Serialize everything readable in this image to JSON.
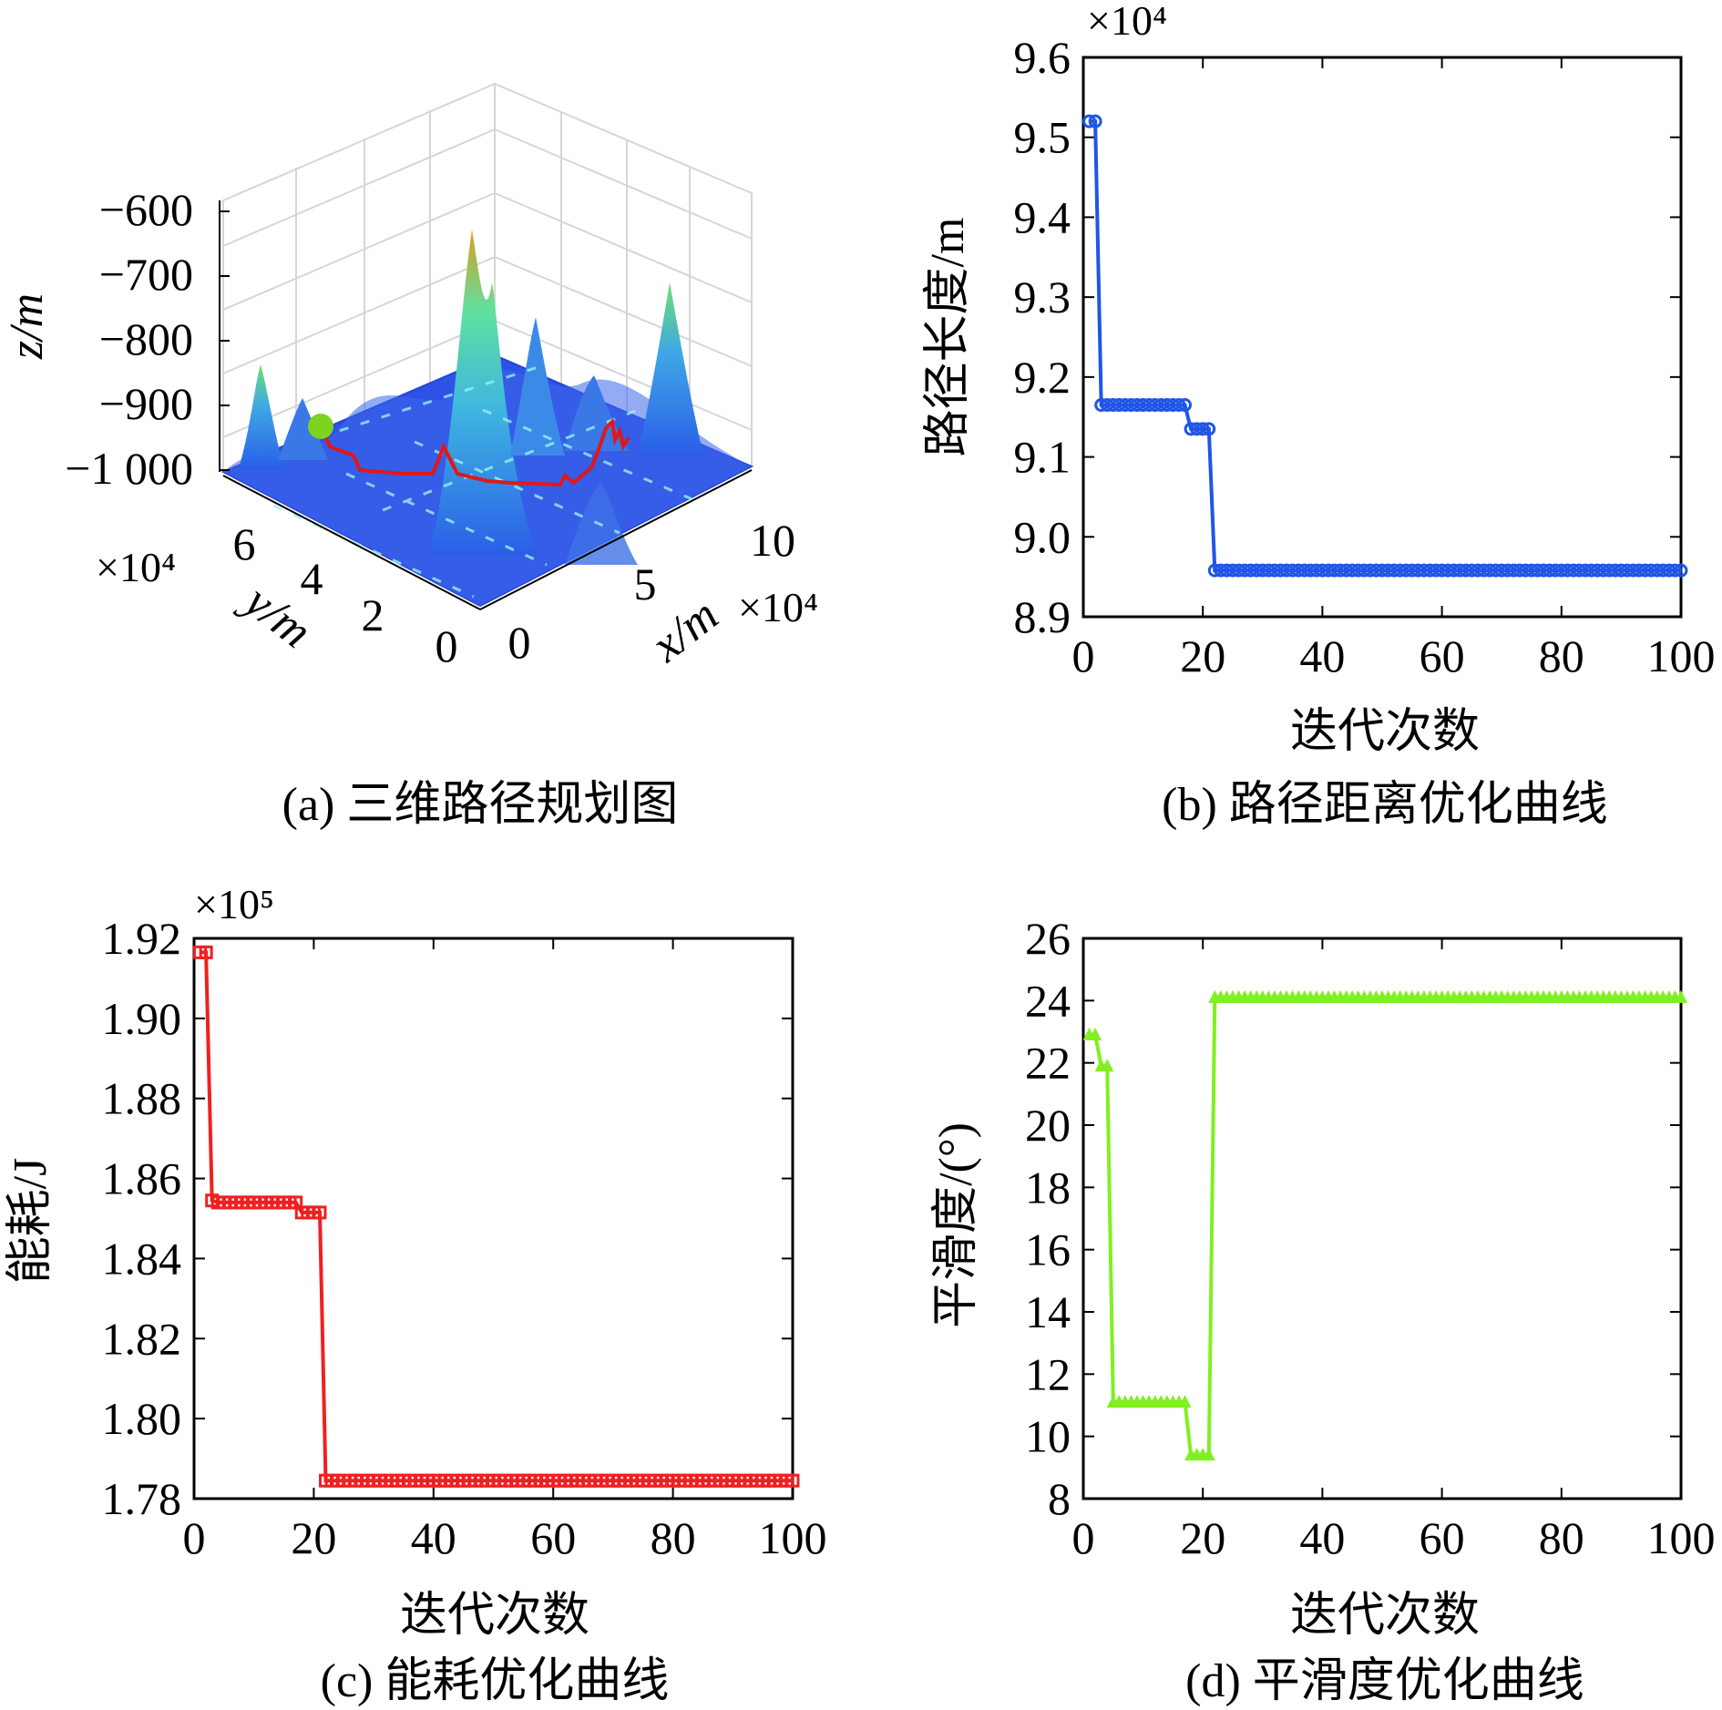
{
  "colors": {
    "b": "#2055e6",
    "c": "#f02020",
    "d": "#80f020",
    "path3d": "#e01818",
    "start3d": "#7ed321"
  },
  "panel_a": {
    "caption": "(a) 三维路径规划图",
    "zlabel": "z/m",
    "ylabel": "y/m",
    "xlabel": "x/m",
    "x_multiplier": "×10⁴",
    "y_multiplier": "×10⁴",
    "z_ticks": [
      "−600",
      "−700",
      "−800",
      "−900",
      "−1 000"
    ],
    "y_ticks": [
      "6",
      "4",
      "2",
      "0"
    ],
    "x_ticks": [
      "0",
      "5",
      "10"
    ]
  },
  "chart_data": [
    {
      "id": "b",
      "type": "line",
      "caption": "(b) 路径距离优化曲线",
      "xlabel": "迭代次数",
      "ylabel": "路径长度/m",
      "multiplier": "×10⁴",
      "xlim": [
        0,
        100
      ],
      "ylim": [
        8.9,
        9.6
      ],
      "xticks": [
        0,
        20,
        40,
        60,
        80,
        100
      ],
      "yticks": [
        8.9,
        9.0,
        9.1,
        9.2,
        9.3,
        9.4,
        9.5,
        9.6
      ],
      "ytick_labels": [
        "8.9",
        "9.0",
        "9.1",
        "9.2",
        "9.3",
        "9.4",
        "9.5",
        "9.6"
      ],
      "marker": "circle",
      "segments": [
        {
          "from": 1,
          "to": 2,
          "value": 9.52
        },
        {
          "from": 3,
          "to": 17,
          "value": 9.165
        },
        {
          "from": 18,
          "to": 21,
          "value": 9.135
        },
        {
          "from": 22,
          "to": 100,
          "value": 8.958
        }
      ]
    },
    {
      "id": "c",
      "type": "line",
      "caption": "(c) 能耗优化曲线",
      "xlabel": "迭代次数",
      "ylabel": "能耗/J",
      "multiplier": "×10⁵",
      "xlim": [
        0,
        100
      ],
      "ylim": [
        1.78,
        1.92
      ],
      "xticks": [
        0,
        20,
        40,
        60,
        80,
        100
      ],
      "yticks": [
        1.78,
        1.8,
        1.82,
        1.84,
        1.86,
        1.88,
        1.9,
        1.92
      ],
      "ytick_labels": [
        "1.78",
        "1.80",
        "1.82",
        "1.84",
        "1.86",
        "1.88",
        "1.90",
        "1.92"
      ],
      "marker": "square",
      "segments": [
        {
          "from": 1,
          "to": 2,
          "value": 1.9165
        },
        {
          "from": 3,
          "to": 3,
          "value": 1.8545
        },
        {
          "from": 4,
          "to": 17,
          "value": 1.854
        },
        {
          "from": 18,
          "to": 21,
          "value": 1.8515
        },
        {
          "from": 22,
          "to": 100,
          "value": 1.7845
        }
      ]
    },
    {
      "id": "d",
      "type": "line",
      "caption": "(d) 平滑度优化曲线",
      "xlabel": "迭代次数",
      "ylabel": "平滑度/(°)",
      "multiplier": "",
      "xlim": [
        0,
        100
      ],
      "ylim": [
        8,
        26
      ],
      "xticks": [
        0,
        20,
        40,
        60,
        80,
        100
      ],
      "yticks": [
        8,
        10,
        12,
        14,
        16,
        18,
        20,
        22,
        24,
        26
      ],
      "ytick_labels": [
        "8",
        "10",
        "12",
        "14",
        "16",
        "18",
        "20",
        "22",
        "24",
        "26"
      ],
      "marker": "triangle",
      "segments": [
        {
          "from": 1,
          "to": 2,
          "value": 22.9
        },
        {
          "from": 3,
          "to": 4,
          "value": 21.9
        },
        {
          "from": 5,
          "to": 17,
          "value": 11.1
        },
        {
          "from": 18,
          "to": 21,
          "value": 9.4
        },
        {
          "from": 22,
          "to": 100,
          "value": 24.1
        }
      ]
    }
  ]
}
